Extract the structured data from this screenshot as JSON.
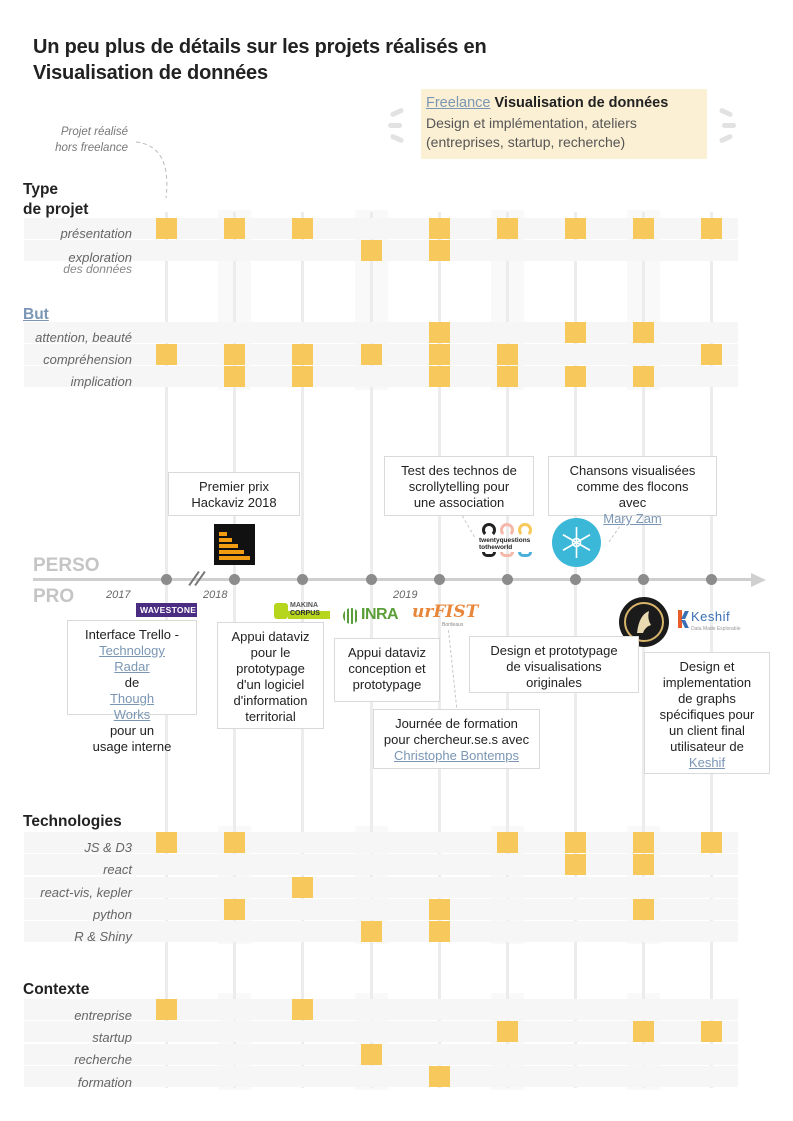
{
  "title": {
    "line1": "Un peu plus de détails sur les projets réalisés en",
    "line2": "Visualisation de données"
  },
  "legend": {
    "freelance_link": "Freelance",
    "freelance_rest": "Visualisation de données",
    "line2": "Design et implémentation, ateliers",
    "line3": "(entreprises, startup, recherche)"
  },
  "note": {
    "line1": "Projet réalisé",
    "line2": "hors freelance"
  },
  "sections": {
    "type": {
      "line1": "Type",
      "line2": "de projet"
    },
    "but": "But",
    "technologies": "Technologies",
    "contexte": "Contexte"
  },
  "rows": {
    "type": [
      "présentation",
      "exploration",
      "des données"
    ],
    "but": [
      "attention, beauté",
      "compréhension",
      "implication"
    ],
    "tech": [
      "JS & D3",
      "react",
      "react-vis, kepler",
      "python",
      "R & Shiny"
    ],
    "contexte": [
      "entreprise",
      "startup",
      "recherche",
      "formation"
    ]
  },
  "grid": {
    "type": [
      [
        1,
        0
      ],
      [
        1,
        0
      ],
      [
        1,
        0
      ],
      [
        0,
        1
      ],
      [
        1,
        1
      ],
      [
        1,
        0
      ],
      [
        1,
        0
      ],
      [
        1,
        0
      ],
      [
        1,
        0
      ]
    ],
    "but": [
      [
        0,
        1,
        0
      ],
      [
        0,
        1,
        1
      ],
      [
        0,
        1,
        1
      ],
      [
        0,
        1,
        0
      ],
      [
        1,
        1,
        1
      ],
      [
        0,
        1,
        1
      ],
      [
        1,
        0,
        1
      ],
      [
        1,
        0,
        1
      ],
      [
        0,
        1,
        0
      ]
    ],
    "tech": [
      [
        1,
        0,
        0,
        0,
        0
      ],
      [
        1,
        0,
        0,
        1,
        0
      ],
      [
        0,
        0,
        1,
        0,
        0
      ],
      [
        0,
        0,
        0,
        0,
        1
      ],
      [
        0,
        0,
        0,
        1,
        1
      ],
      [
        1,
        0,
        0,
        0,
        0
      ],
      [
        1,
        1,
        0,
        0,
        0
      ],
      [
        1,
        1,
        0,
        1,
        0
      ],
      [
        1,
        0,
        0,
        0,
        0
      ]
    ],
    "contexte": [
      [
        1,
        0,
        0,
        0
      ],
      [
        0,
        0,
        0,
        0
      ],
      [
        1,
        0,
        0,
        0
      ],
      [
        0,
        0,
        1,
        0
      ],
      [
        0,
        0,
        0,
        1
      ],
      [
        0,
        1,
        0,
        0
      ],
      [
        0,
        0,
        0,
        0
      ],
      [
        0,
        1,
        0,
        0
      ],
      [
        0,
        1,
        0,
        0
      ]
    ]
  },
  "timeline": {
    "perso": "PERSO",
    "pro": "PRO",
    "years": [
      "2017",
      "2018",
      "2019"
    ]
  },
  "boxes": {
    "hackaviz": {
      "l1": "Premier prix",
      "l2": "Hackaviz 2018"
    },
    "scrolly": {
      "l1": "Test des technos de",
      "l2": "scrollytelling pour",
      "l3": "une association"
    },
    "flocons": {
      "l1": "Chansons visualisées",
      "l2": "comme des flocons",
      "l3a": "avec ",
      "l3link": "Mary Zam"
    },
    "trello": {
      "l1": "Interface Trello -",
      "l2link": "Technology",
      "l3link1": "Radar",
      "l3mid": " de ",
      "l3link2": "Though",
      "l4link": "Works",
      "l4rest": " pour un",
      "l5": "usage interne"
    },
    "makina": {
      "l1": "Appui dataviz",
      "l2": "pour le",
      "l3": "prototypage",
      "l4": "d'un logiciel",
      "l5": "d'information",
      "l6": "territorial"
    },
    "inra": {
      "l1": "Appui dataviz",
      "l2": "conception et",
      "l3": "prototypage"
    },
    "urfist": {
      "l1": "Journée de formation",
      "l2": "pour chercheur.se.s avec",
      "l3link": "Christophe Bontemps"
    },
    "design": {
      "l1": "Design et prototypage",
      "l2": "de visualisations",
      "l3": "originales"
    },
    "keshif": {
      "l1": "Design et",
      "l2": "implementation",
      "l3": "de graphs",
      "l4": "spécifiques pour",
      "l5": "un client final",
      "l6": "utilisateur de",
      "l7link": "Keshif"
    }
  },
  "logos": {
    "wavestone": "WAVESTONE",
    "makina_top": "MAKINA",
    "makina_bottom": "CORPUS",
    "inra": "INRA",
    "urfist": "urFIST",
    "urfist_sub": "Bordeaux",
    "twentyq_1": "twentyquestions",
    "twentyq_2": "totheworld",
    "keshif": "Keshif",
    "keshif_sub": "Data Made Explorable"
  },
  "colors": {
    "accent": "#f7c85b",
    "link": "#7a96b4",
    "legend_bg": "#fcf0d4"
  }
}
